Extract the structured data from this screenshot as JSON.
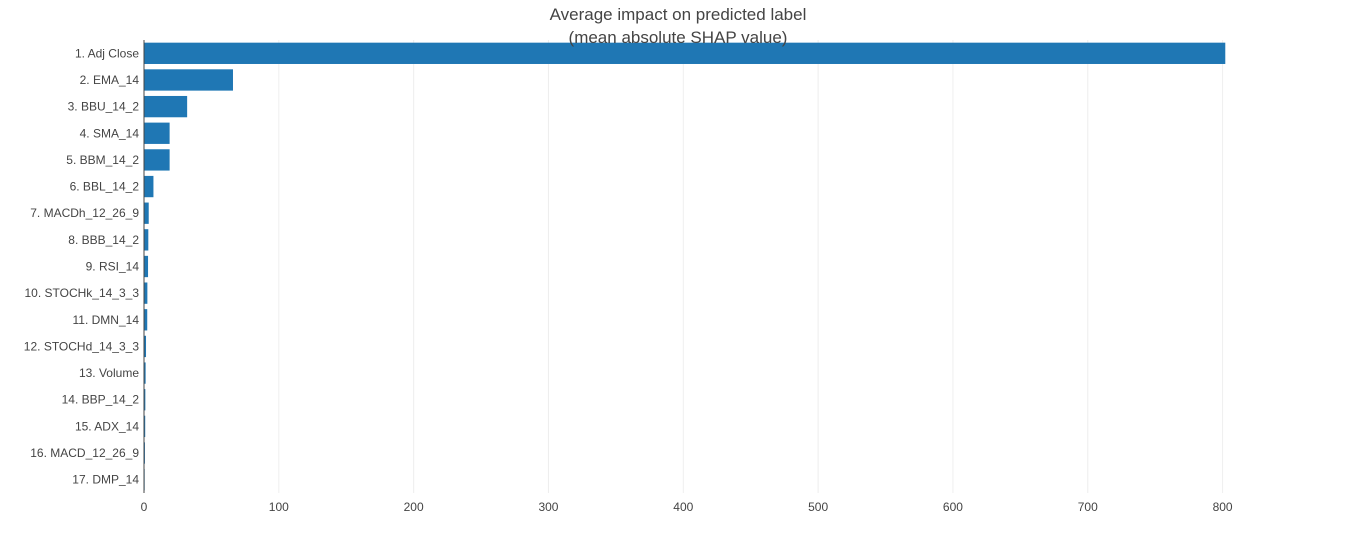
{
  "chart_data": {
    "type": "bar",
    "orientation": "horizontal",
    "title": "Average impact on predicted label",
    "subtitle": "(mean absolute SHAP value)",
    "xlabel": "",
    "ylabel": "",
    "xlim": [
      0,
      850
    ],
    "x_ticks": [
      0,
      100,
      200,
      300,
      400,
      500,
      600,
      700,
      800
    ],
    "grid": true,
    "legend": "none",
    "bar_color": "#1f77b4",
    "categories": [
      "1. Adj Close",
      "2. EMA_14",
      "3. BBU_14_2",
      "4. SMA_14",
      "5. BBM_14_2",
      "6. BBL_14_2",
      "7. MACDh_12_26_9",
      "8. BBB_14_2",
      "9. RSI_14",
      "10. STOCHk_14_3_3",
      "11. DMN_14",
      "12. STOCHd_14_3_3",
      "13. Volume",
      "14. BBP_14_2",
      "15. ADX_14",
      "16. MACD_12_26_9",
      "17. DMP_14"
    ],
    "values": [
      802,
      66,
      32,
      19,
      19,
      7,
      3.5,
      3.2,
      3.0,
      2.5,
      2.4,
      1.5,
      1.2,
      1.0,
      0.9,
      0.7,
      0.5
    ]
  }
}
